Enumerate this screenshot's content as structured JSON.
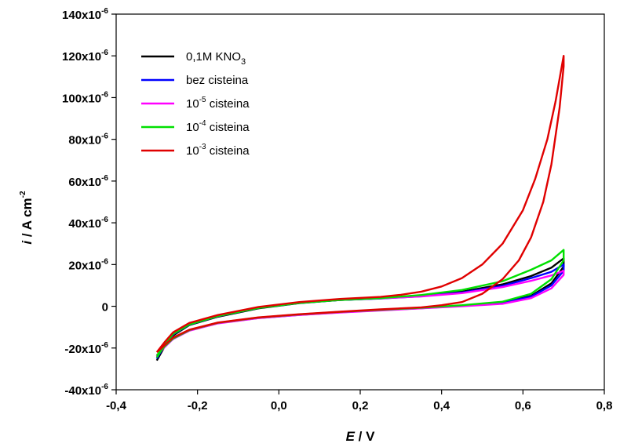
{
  "chart_data": {
    "type": "line",
    "xlabel_italic": "E",
    "xlabel_unit": " / V",
    "ylabel_italic": "i",
    "ylabel_unit": " / A cm",
    "ylabel_sup": "-2",
    "xlim": [
      -0.4,
      0.8
    ],
    "ylim": [
      -4e-05,
      0.00014
    ],
    "x_ticks": [
      -0.4,
      -0.2,
      0.0,
      0.2,
      0.4,
      0.6,
      0.8
    ],
    "x_tick_labels": [
      "-0,4",
      "-0,2",
      "0,0",
      "0,2",
      "0,4",
      "0,6",
      "0,8"
    ],
    "y_ticks": [
      -4e-05,
      -2e-05,
      0,
      2e-05,
      4e-05,
      6e-05,
      8e-05,
      0.0001,
      0.00012,
      0.00014
    ],
    "y_tick_labels": [
      {
        "base": "-40x10",
        "exp": "-6"
      },
      {
        "base": "-20x10",
        "exp": "-6"
      },
      {
        "base": "0",
        "exp": ""
      },
      {
        "base": "20x10",
        "exp": "-6"
      },
      {
        "base": "40x10",
        "exp": "-6"
      },
      {
        "base": "60x10",
        "exp": "-6"
      },
      {
        "base": "80x10",
        "exp": "-6"
      },
      {
        "base": "100x10",
        "exp": "-6"
      },
      {
        "base": "120x10",
        "exp": "-6"
      },
      {
        "base": "140x10",
        "exp": "-6"
      }
    ],
    "grid": false,
    "legend_position": "top-left",
    "series": [
      {
        "legend": {
          "pre": "0,1M KNO",
          "sup": "",
          "sub": "3",
          "post": ""
        },
        "color": "#000000",
        "x": [
          -0.3,
          -0.28,
          -0.26,
          -0.22,
          -0.15,
          -0.05,
          0.05,
          0.15,
          0.25,
          0.35,
          0.45,
          0.55,
          0.62,
          0.67,
          0.7,
          0.7,
          0.67,
          0.62,
          0.55,
          0.45,
          0.35,
          0.25,
          0.15,
          0.05,
          -0.05,
          -0.15,
          -0.22,
          -0.26,
          -0.28,
          -0.3
        ],
        "y": [
          -2.6e-05,
          -1.9e-05,
          -1.4e-05,
          -9e-06,
          -5e-06,
          -1e-06,
          1.5e-06,
          3e-06,
          3.8e-06,
          5e-06,
          7e-06,
          1.05e-05,
          1.45e-05,
          1.85e-05,
          2.3e-05,
          1.9e-05,
          1.1e-05,
          5e-06,
          1.8e-06,
          3e-07,
          -8e-07,
          -1.8e-06,
          -2.8e-06,
          -4e-06,
          -5.5e-06,
          -8e-06,
          -1.15e-05,
          -1.55e-05,
          -1.9e-05,
          -2.4e-05
        ]
      },
      {
        "legend": {
          "pre": "bez cisteina",
          "sup": "",
          "sub": "",
          "post": ""
        },
        "color": "#0000ff",
        "x": [
          -0.3,
          -0.28,
          -0.26,
          -0.22,
          -0.15,
          -0.05,
          0.05,
          0.15,
          0.25,
          0.35,
          0.45,
          0.55,
          0.62,
          0.67,
          0.7,
          0.7,
          0.67,
          0.62,
          0.55,
          0.45,
          0.35,
          0.25,
          0.15,
          0.05,
          -0.05,
          -0.15,
          -0.22,
          -0.26,
          -0.28,
          -0.3
        ],
        "y": [
          -2.5e-05,
          -1.85e-05,
          -1.35e-05,
          -8.8e-06,
          -4.8e-06,
          -8e-07,
          1.6e-06,
          3e-06,
          3.7e-06,
          4.8e-06,
          6.6e-06,
          9.8e-06,
          1.35e-05,
          1.65e-05,
          2e-05,
          1.7e-05,
          1e-05,
          4.6e-06,
          1.6e-06,
          2e-07,
          -9e-07,
          -1.9e-06,
          -2.9e-06,
          -4.1e-06,
          -5.6e-06,
          -8.1e-06,
          -1.16e-05,
          -1.56e-05,
          -1.92e-05,
          -2.4e-05
        ]
      },
      {
        "legend": {
          "pre": "10",
          "sup": "-5",
          "sub": "",
          "post": " cisteina"
        },
        "color": "#ff00ff",
        "x": [
          -0.3,
          -0.28,
          -0.26,
          -0.22,
          -0.15,
          -0.05,
          0.05,
          0.15,
          0.25,
          0.35,
          0.45,
          0.55,
          0.62,
          0.67,
          0.7,
          0.7,
          0.67,
          0.62,
          0.55,
          0.45,
          0.35,
          0.25,
          0.15,
          0.05,
          -0.05,
          -0.15,
          -0.22,
          -0.26,
          -0.28,
          -0.3
        ],
        "y": [
          -2.4e-05,
          -1.8e-05,
          -1.32e-05,
          -8.6e-06,
          -4.7e-06,
          -7e-07,
          1.7e-06,
          3.1e-06,
          3.8e-06,
          4.7e-06,
          6.3e-06,
          9.2e-06,
          1.22e-05,
          1.48e-05,
          1.7e-05,
          1.5e-05,
          8.6e-06,
          3.9e-06,
          1.2e-06,
          0.0,
          -1e-06,
          -2e-06,
          -3e-06,
          -4.2e-06,
          -5.7e-06,
          -8.2e-06,
          -1.17e-05,
          -1.57e-05,
          -1.94e-05,
          -2.35e-05
        ]
      },
      {
        "legend": {
          "pre": "10",
          "sup": "-4",
          "sub": "",
          "post": " cisteina"
        },
        "color": "#00e000",
        "x": [
          -0.3,
          -0.28,
          -0.26,
          -0.22,
          -0.15,
          -0.05,
          0.05,
          0.15,
          0.25,
          0.35,
          0.45,
          0.55,
          0.62,
          0.67,
          0.7,
          0.7,
          0.67,
          0.62,
          0.55,
          0.45,
          0.35,
          0.25,
          0.15,
          0.05,
          -0.05,
          -0.15,
          -0.22,
          -0.26,
          -0.28,
          -0.3
        ],
        "y": [
          -2.45e-05,
          -1.82e-05,
          -1.33e-05,
          -8.7e-06,
          -4.7e-06,
          -8e-07,
          1.6e-06,
          3e-06,
          3.9e-06,
          5.4e-06,
          7.8e-06,
          1.2e-05,
          1.75e-05,
          2.2e-05,
          2.7e-05,
          2.2e-05,
          1.3e-05,
          6e-06,
          2.2e-06,
          5e-07,
          -7e-07,
          -1.7e-06,
          -2.7e-06,
          -3.9e-06,
          -5.4e-06,
          -7.9e-06,
          -1.14e-05,
          -1.54e-05,
          -1.9e-05,
          -2.35e-05
        ]
      },
      {
        "legend": {
          "pre": "10",
          "sup": "-3",
          "sub": "",
          "post": " cisteina"
        },
        "color": "#e00000",
        "x": [
          -0.3,
          -0.28,
          -0.26,
          -0.22,
          -0.15,
          -0.05,
          0.05,
          0.15,
          0.25,
          0.3,
          0.35,
          0.4,
          0.45,
          0.5,
          0.55,
          0.6,
          0.63,
          0.66,
          0.68,
          0.7,
          0.7,
          0.69,
          0.67,
          0.65,
          0.62,
          0.59,
          0.55,
          0.5,
          0.45,
          0.4,
          0.35,
          0.25,
          0.15,
          0.05,
          -0.05,
          -0.15,
          -0.22,
          -0.26,
          -0.28,
          -0.3
        ],
        "y": [
          -2.2e-05,
          -1.7e-05,
          -1.25e-05,
          -8e-06,
          -4.2e-06,
          -3e-07,
          2e-06,
          3.5e-06,
          4.5e-06,
          5.5e-06,
          7e-06,
          9.5e-06,
          1.35e-05,
          2e-05,
          3e-05,
          4.6e-05,
          6.1e-05,
          8e-05,
          9.8e-05,
          0.00012,
          0.000115,
          9.5e-05,
          6.8e-05,
          5e-05,
          3.3e-05,
          2.2e-05,
          1.3e-05,
          6e-06,
          2e-06,
          5e-07,
          -5e-07,
          -1.5e-06,
          -2.6e-06,
          -3.8e-06,
          -5.3e-06,
          -7.8e-06,
          -1.12e-05,
          -1.5e-05,
          -1.85e-05,
          -2.2e-05
        ]
      }
    ]
  }
}
